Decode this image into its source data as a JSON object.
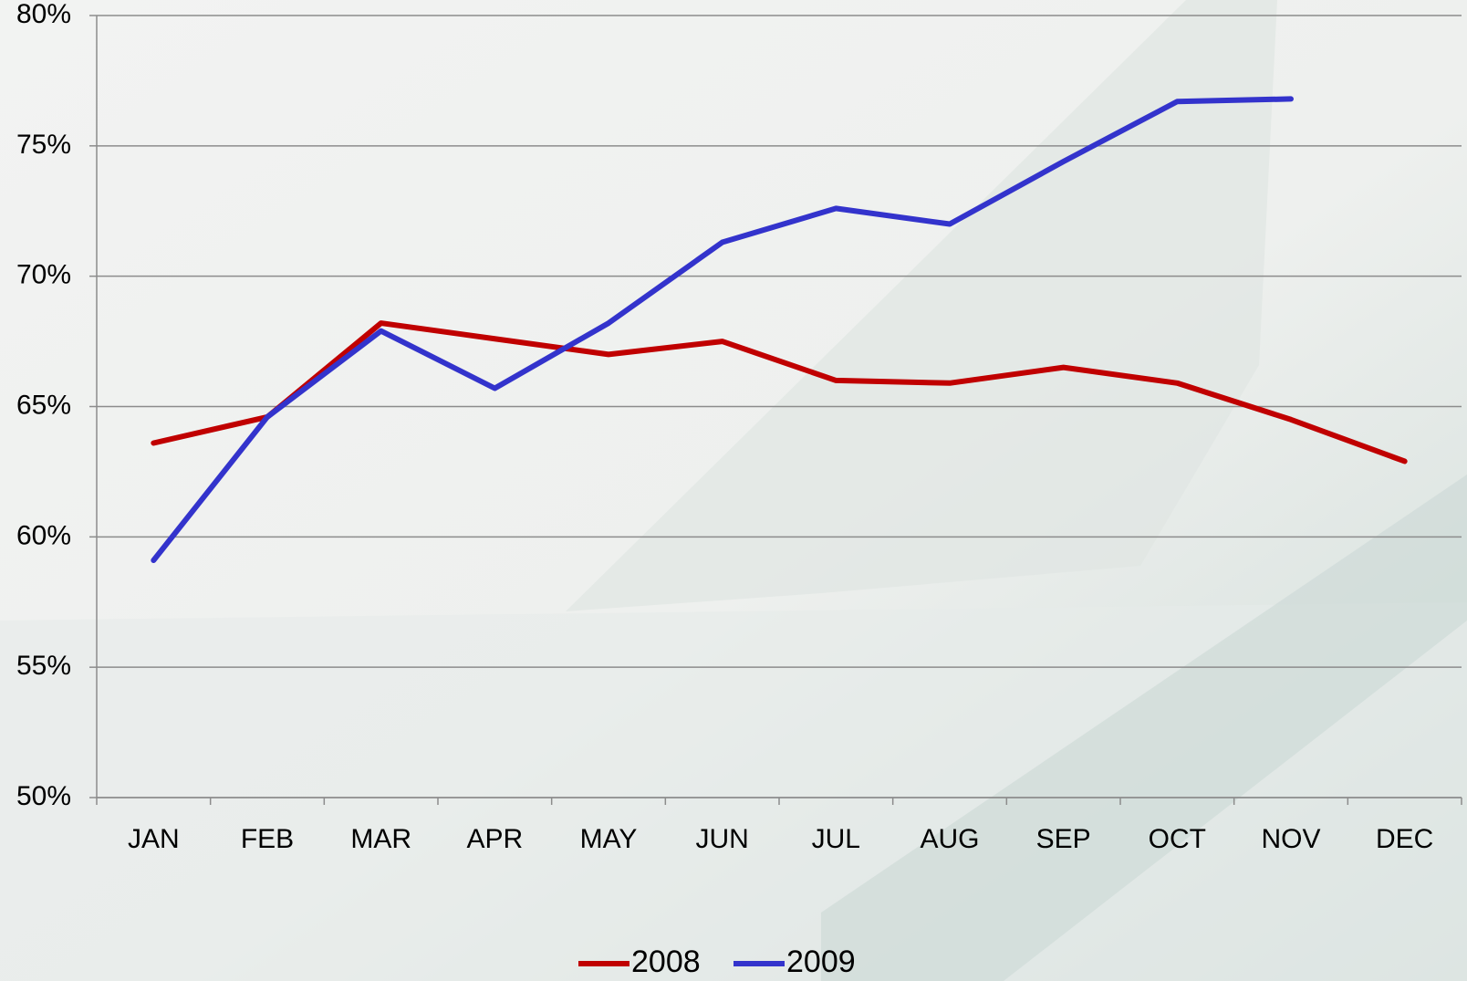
{
  "chart_data": {
    "type": "line",
    "categories": [
      "JAN",
      "FEB",
      "MAR",
      "APR",
      "MAY",
      "JUN",
      "JUL",
      "AUG",
      "SEP",
      "OCT",
      "NOV",
      "DEC"
    ],
    "series": [
      {
        "name": "2008",
        "color": "#c00000",
        "values": [
          63.6,
          64.6,
          68.2,
          67.6,
          67.0,
          67.5,
          66.0,
          65.9,
          66.5,
          65.9,
          64.5,
          62.9
        ]
      },
      {
        "name": "2009",
        "color": "#3333cc",
        "values": [
          59.1,
          64.6,
          67.9,
          65.7,
          68.2,
          71.3,
          72.6,
          72.0,
          74.4,
          76.7,
          76.8,
          null
        ]
      }
    ],
    "ylim": [
      50,
      80
    ],
    "yticks": [
      {
        "value": 50,
        "label": "50%"
      },
      {
        "value": 55,
        "label": "55%"
      },
      {
        "value": 60,
        "label": "60%"
      },
      {
        "value": 65,
        "label": "65%"
      },
      {
        "value": 70,
        "label": "70%"
      },
      {
        "value": 75,
        "label": "75%"
      },
      {
        "value": 80,
        "label": "80%"
      }
    ],
    "grid": true,
    "legend": "bottom"
  }
}
